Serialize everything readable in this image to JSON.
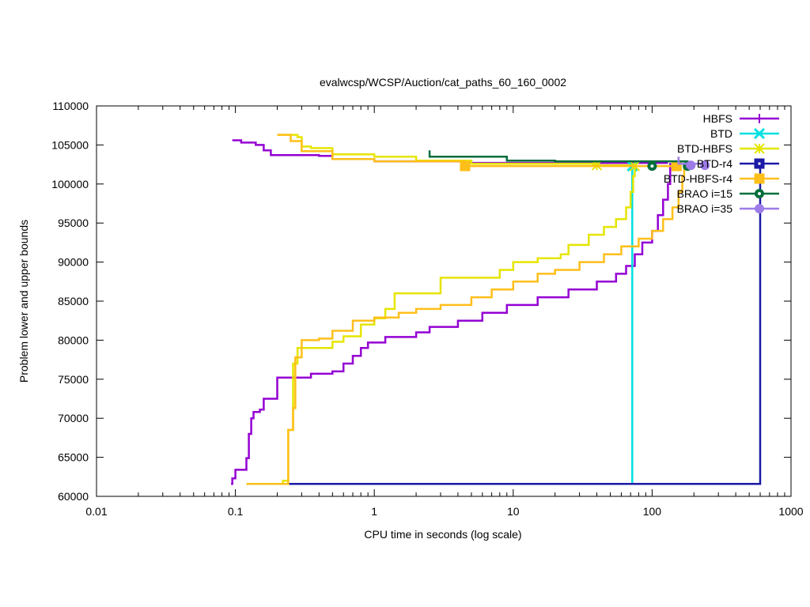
{
  "chart_data": {
    "type": "line",
    "title": "evalwcsp/WCSP/Auction/cat_paths_60_160_0002",
    "xlabel": "CPU time in seconds (log scale)",
    "ylabel": "Problem lower and upper bounds",
    "xscale": "log",
    "xlim": [
      0.01,
      1000
    ],
    "ylim": [
      60000,
      110000
    ],
    "xticks": [
      0.01,
      0.1,
      1,
      10,
      100,
      1000
    ],
    "xtick_labels": [
      "0.01",
      "0.1",
      "1",
      "10",
      "100",
      "1000"
    ],
    "yticks": [
      60000,
      65000,
      70000,
      75000,
      80000,
      85000,
      90000,
      95000,
      100000,
      105000,
      110000
    ],
    "ytick_labels": [
      "60000",
      "65000",
      "70000",
      "75000",
      "80000",
      "85000",
      "90000",
      "95000",
      "100000",
      "105000",
      "110000"
    ],
    "grid": false,
    "legend_position": "top-right",
    "series": [
      {
        "name": "HBFS",
        "color": "#9400d3",
        "marker": "plus",
        "upper": [
          [
            0.095,
            105600
          ],
          [
            0.11,
            105300
          ],
          [
            0.14,
            105000
          ],
          [
            0.16,
            104300
          ],
          [
            0.18,
            103700
          ],
          [
            0.4,
            103600
          ],
          [
            0.5,
            103200
          ],
          [
            1.0,
            102900
          ],
          [
            5,
            102700
          ],
          [
            20,
            102700
          ],
          [
            130,
            102700
          ]
        ],
        "lower": [
          [
            0.093,
            61600
          ],
          [
            0.095,
            62300
          ],
          [
            0.1,
            63400
          ],
          [
            0.12,
            64900
          ],
          [
            0.125,
            68000
          ],
          [
            0.13,
            70000
          ],
          [
            0.135,
            70800
          ],
          [
            0.15,
            71100
          ],
          [
            0.16,
            72500
          ],
          [
            0.2,
            75200
          ],
          [
            0.35,
            75700
          ],
          [
            0.5,
            76000
          ],
          [
            0.6,
            77000
          ],
          [
            0.7,
            78000
          ],
          [
            0.8,
            79000
          ],
          [
            0.9,
            79700
          ],
          [
            1.2,
            80400
          ],
          [
            2,
            81000
          ],
          [
            2.5,
            81700
          ],
          [
            4,
            82500
          ],
          [
            6,
            83500
          ],
          [
            9,
            84500
          ],
          [
            15,
            85500
          ],
          [
            25,
            86500
          ],
          [
            40,
            87500
          ],
          [
            55,
            88500
          ],
          [
            65,
            89500
          ],
          [
            75,
            91000
          ],
          [
            85,
            92500
          ],
          [
            100,
            94000
          ],
          [
            110,
            96000
          ],
          [
            120,
            98000
          ],
          [
            130,
            100000
          ],
          [
            135,
            102700
          ]
        ],
        "markers": []
      },
      {
        "name": "BTD",
        "color": "#00e0e0",
        "marker": "cross",
        "upper": [
          [
            72,
            61600
          ],
          [
            72,
            102300
          ]
        ],
        "lower": [],
        "markers": [
          [
            72,
            102300
          ]
        ]
      },
      {
        "name": "BTD-HBFS",
        "color": "#e5e500",
        "marker": "star",
        "upper": [
          [
            0.2,
            106300
          ],
          [
            0.28,
            106000
          ],
          [
            0.3,
            104800
          ],
          [
            0.35,
            104600
          ],
          [
            0.5,
            103800
          ],
          [
            1,
            103500
          ],
          [
            2,
            103000
          ],
          [
            5,
            102600
          ],
          [
            40,
            102400
          ],
          [
            72,
            102400
          ]
        ],
        "lower": [
          [
            0.12,
            61600
          ],
          [
            0.2,
            61600
          ],
          [
            0.22,
            62000
          ],
          [
            0.24,
            68500
          ],
          [
            0.26,
            77000
          ],
          [
            0.28,
            79000
          ],
          [
            0.4,
            79000
          ],
          [
            0.5,
            79800
          ],
          [
            0.6,
            80500
          ],
          [
            0.8,
            82000
          ],
          [
            1,
            82800
          ],
          [
            1.2,
            84000
          ],
          [
            1.4,
            86000
          ],
          [
            2.5,
            86000
          ],
          [
            3,
            88000
          ],
          [
            7,
            88000
          ],
          [
            8,
            89000
          ],
          [
            10,
            90000
          ],
          [
            15,
            90500
          ],
          [
            22,
            91000
          ],
          [
            25,
            92200
          ],
          [
            35,
            93500
          ],
          [
            45,
            94500
          ],
          [
            55,
            95500
          ],
          [
            65,
            97000
          ],
          [
            70,
            99000
          ],
          [
            73,
            101000
          ],
          [
            75,
            102300
          ]
        ],
        "markers": [
          [
            40,
            102400
          ],
          [
            75,
            102300
          ]
        ]
      },
      {
        "name": "BTD-r4",
        "color": "#1a1aa6",
        "marker": "square",
        "upper": [
          [
            0.23,
            61600
          ],
          [
            600,
            61600
          ],
          [
            600,
            102800
          ]
        ],
        "lower": [],
        "markers": []
      },
      {
        "name": "BTD-HBFS-r4",
        "color": "#ffbf1a",
        "marker": "square-filled",
        "upper": [
          [
            0.2,
            106300
          ],
          [
            0.25,
            105500
          ],
          [
            0.3,
            104200
          ],
          [
            0.5,
            103200
          ],
          [
            1,
            102900
          ],
          [
            4.5,
            102300
          ],
          [
            150,
            102300
          ]
        ],
        "lower": [
          [
            0.12,
            61600
          ],
          [
            0.2,
            61600
          ],
          [
            0.23,
            61600
          ],
          [
            0.24,
            68500
          ],
          [
            0.26,
            71300
          ],
          [
            0.27,
            77800
          ],
          [
            0.3,
            80000
          ],
          [
            0.4,
            80200
          ],
          [
            0.5,
            81200
          ],
          [
            0.7,
            82500
          ],
          [
            1,
            82900
          ],
          [
            1.5,
            83500
          ],
          [
            2,
            84000
          ],
          [
            3,
            84500
          ],
          [
            5,
            85500
          ],
          [
            7,
            86500
          ],
          [
            10,
            87500
          ],
          [
            15,
            88500
          ],
          [
            20,
            89000
          ],
          [
            30,
            90000
          ],
          [
            45,
            91000
          ],
          [
            60,
            92000
          ],
          [
            80,
            93000
          ],
          [
            100,
            94000
          ],
          [
            120,
            95500
          ],
          [
            140,
            97000
          ],
          [
            155,
            99000
          ],
          [
            165,
            101000
          ],
          [
            170,
            102300
          ]
        ],
        "markers": [
          [
            4.5,
            102300
          ],
          [
            150,
            102300
          ]
        ]
      },
      {
        "name": "BRAO i=15",
        "color": "#006e3c",
        "marker": "circle",
        "upper": [
          [
            2.5,
            104300
          ],
          [
            2.5,
            103500
          ],
          [
            9,
            103500
          ],
          [
            9,
            103000
          ],
          [
            20,
            102900
          ],
          [
            180,
            102500
          ]
        ],
        "lower": [],
        "markers": [
          [
            100,
            102300
          ],
          [
            180,
            102300
          ]
        ]
      },
      {
        "name": "BRAO i=35",
        "color": "#9d7ce8",
        "marker": "circle-filled",
        "upper": [
          [
            155,
            103500
          ],
          [
            155,
            102600
          ],
          [
            240,
            102400
          ]
        ],
        "lower": [],
        "markers": [
          [
            190,
            102400
          ],
          [
            240,
            102400
          ]
        ]
      }
    ]
  }
}
